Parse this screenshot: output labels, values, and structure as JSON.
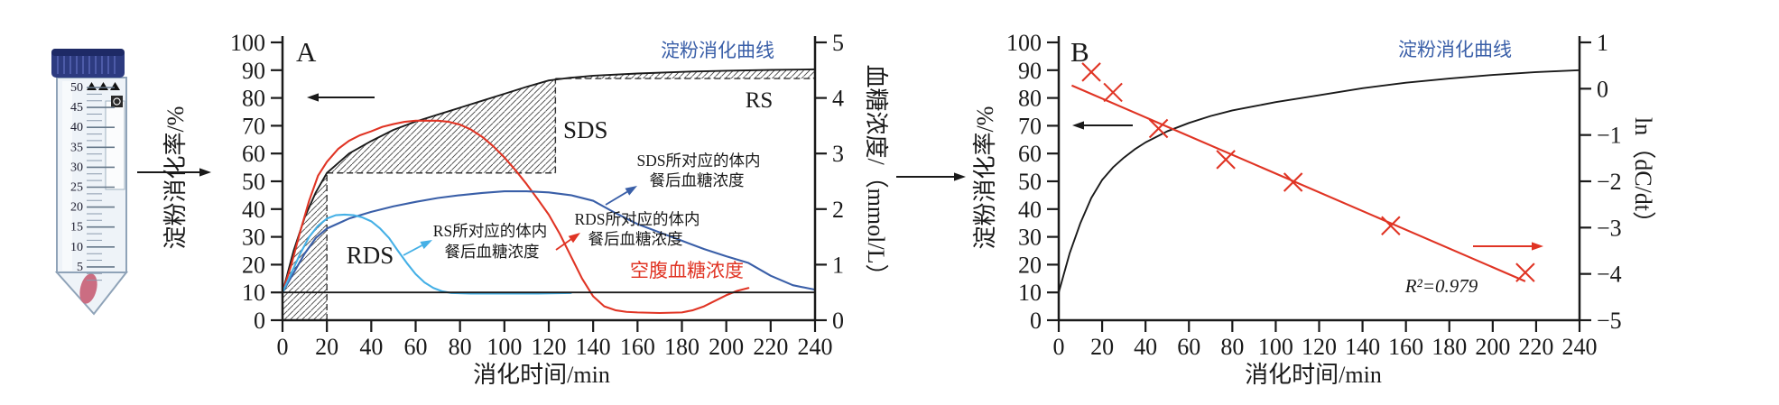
{
  "colors": {
    "black": "#1a1a1a",
    "red": "#e03424",
    "blue": "#3a5fa8",
    "light_blue": "#45b0e6",
    "hatch": "#444444",
    "tube_cap": "#2d3b80",
    "tube_body": "#eef3f8",
    "pellet": "#cb6d82"
  },
  "tube": {
    "graduations": [
      "50",
      "45",
      "40",
      "35",
      "30",
      "25",
      "20",
      "15",
      "10",
      "5"
    ]
  },
  "chart_data": [
    {
      "panel": "A",
      "type": "line",
      "xlabel": "消化时间/min",
      "ylabel_left": "淀粉消化率/%",
      "ylabel_right": "血糖浓度/（mmol/L）",
      "xlim": [
        0,
        240
      ],
      "xticks": [
        0,
        20,
        40,
        60,
        80,
        100,
        120,
        140,
        160,
        180,
        200,
        220,
        240
      ],
      "ylim_left": [
        0,
        100
      ],
      "yticks_left": [
        0,
        10,
        20,
        30,
        40,
        50,
        60,
        70,
        80,
        90,
        100
      ],
      "ylim_right": [
        0,
        5
      ],
      "yticks_right": [
        0,
        1,
        2,
        3,
        4,
        5
      ],
      "labels": {
        "curve": "淀粉消化曲线",
        "rds": "RDS",
        "sds": "SDS",
        "rs": "RS",
        "fasting": "空腹血糖浓度",
        "rs_ann": [
          "RS所对应的体内",
          "餐后血糖浓度"
        ],
        "sds_ann": [
          "SDS所对应的体内",
          "餐后血糖浓度"
        ],
        "rds_ann": [
          "RDS所对应的体内",
          "餐后血糖浓度"
        ]
      },
      "guides": {
        "rds_t": 20,
        "sds_t": 123,
        "sds_level": 53,
        "rs_level": 87,
        "baseline_mmol": 0.5
      },
      "series": [
        {
          "name": "starch-digestion-curve",
          "color": "black",
          "axis": "left",
          "points": [
            [
              0,
              10
            ],
            [
              5,
              25
            ],
            [
              10,
              37
            ],
            [
              15,
              46
            ],
            [
              20,
              53
            ],
            [
              30,
              60
            ],
            [
              40,
              64.5
            ],
            [
              50,
              68.5
            ],
            [
              60,
              71.5
            ],
            [
              70,
              74
            ],
            [
              80,
              76.5
            ],
            [
              90,
              79
            ],
            [
              100,
              81.5
            ],
            [
              110,
              84
            ],
            [
              120,
              86.3
            ],
            [
              130,
              87.3
            ],
            [
              140,
              88
            ],
            [
              160,
              88.8
            ],
            [
              180,
              89.4
            ],
            [
              200,
              89.8
            ],
            [
              220,
              90.1
            ],
            [
              240,
              90.3
            ]
          ]
        },
        {
          "name": "rds-postprandial-glucose",
          "color": "red",
          "axis": "right",
          "points": [
            [
              0,
              0.5
            ],
            [
              4,
              1.0
            ],
            [
              8,
              1.6
            ],
            [
              12,
              2.15
            ],
            [
              16,
              2.6
            ],
            [
              20,
              2.85
            ],
            [
              25,
              3.08
            ],
            [
              30,
              3.23
            ],
            [
              35,
              3.33
            ],
            [
              40,
              3.4
            ],
            [
              45,
              3.48
            ],
            [
              50,
              3.53
            ],
            [
              55,
              3.57
            ],
            [
              60,
              3.59
            ],
            [
              65,
              3.59
            ],
            [
              70,
              3.59
            ],
            [
              75,
              3.57
            ],
            [
              80,
              3.52
            ],
            [
              85,
              3.43
            ],
            [
              90,
              3.3
            ],
            [
              95,
              3.13
            ],
            [
              100,
              2.93
            ],
            [
              105,
              2.7
            ],
            [
              110,
              2.45
            ],
            [
              115,
              2.18
            ],
            [
              120,
              1.9
            ],
            [
              125,
              1.55
            ],
            [
              130,
              1.15
            ],
            [
              135,
              0.75
            ],
            [
              140,
              0.43
            ],
            [
              145,
              0.25
            ],
            [
              150,
              0.18
            ],
            [
              155,
              0.15
            ],
            [
              160,
              0.14
            ],
            [
              170,
              0.13
            ],
            [
              180,
              0.14
            ],
            [
              185,
              0.18
            ],
            [
              190,
              0.25
            ],
            [
              195,
              0.35
            ],
            [
              200,
              0.45
            ],
            [
              205,
              0.53
            ],
            [
              210,
              0.58
            ]
          ]
        },
        {
          "name": "sds-postprandial-glucose",
          "color": "blue",
          "axis": "right",
          "points": [
            [
              0,
              0.5
            ],
            [
              5,
              0.85
            ],
            [
              10,
              1.2
            ],
            [
              15,
              1.48
            ],
            [
              20,
              1.65
            ],
            [
              30,
              1.83
            ],
            [
              40,
              1.95
            ],
            [
              50,
              2.05
            ],
            [
              60,
              2.13
            ],
            [
              70,
              2.2
            ],
            [
              80,
              2.25
            ],
            [
              90,
              2.29
            ],
            [
              100,
              2.32
            ],
            [
              110,
              2.32
            ],
            [
              120,
              2.3
            ],
            [
              130,
              2.25
            ],
            [
              140,
              2.15
            ],
            [
              150,
              1.93
            ],
            [
              160,
              1.73
            ],
            [
              170,
              1.58
            ],
            [
              180,
              1.43
            ],
            [
              190,
              1.28
            ],
            [
              200,
              1.15
            ],
            [
              210,
              1.03
            ],
            [
              220,
              0.8
            ],
            [
              230,
              0.63
            ],
            [
              240,
              0.55
            ]
          ]
        },
        {
          "name": "rs-postprandial-glucose",
          "color": "light_blue",
          "axis": "right",
          "points": [
            [
              0,
              0.5
            ],
            [
              4,
              0.85
            ],
            [
              8,
              1.2
            ],
            [
              12,
              1.5
            ],
            [
              16,
              1.7
            ],
            [
              20,
              1.83
            ],
            [
              24,
              1.89
            ],
            [
              28,
              1.9
            ],
            [
              32,
              1.89
            ],
            [
              36,
              1.85
            ],
            [
              40,
              1.78
            ],
            [
              44,
              1.65
            ],
            [
              48,
              1.48
            ],
            [
              52,
              1.25
            ],
            [
              56,
              1.03
            ],
            [
              60,
              0.83
            ],
            [
              64,
              0.68
            ],
            [
              68,
              0.58
            ],
            [
              72,
              0.52
            ],
            [
              76,
              0.49
            ],
            [
              85,
              0.48
            ],
            [
              100,
              0.48
            ],
            [
              115,
              0.48
            ],
            [
              130,
              0.49
            ]
          ]
        },
        {
          "name": "fasting-glucose-baseline",
          "color": "black",
          "axis": "right",
          "points": [
            [
              0,
              0.5
            ],
            [
              240,
              0.5
            ]
          ]
        }
      ]
    },
    {
      "panel": "B",
      "type": "line+scatter",
      "xlabel": "消化时间/min",
      "ylabel_left": "淀粉消化率/%",
      "ylabel_right": "ln（dC/dt）",
      "xlim": [
        0,
        240
      ],
      "xticks": [
        0,
        20,
        40,
        60,
        80,
        100,
        120,
        140,
        160,
        180,
        200,
        220,
        240
      ],
      "ylim_left": [
        0,
        100
      ],
      "yticks_left": [
        0,
        10,
        20,
        30,
        40,
        50,
        60,
        70,
        80,
        90,
        100
      ],
      "ylim_right": [
        -5,
        1
      ],
      "yticks_right": [
        1,
        0,
        -1,
        -2,
        -3,
        -4,
        -5
      ],
      "labels": {
        "curve": "淀粉消化曲线",
        "r_squared": "R²=0.979"
      },
      "series": [
        {
          "name": "starch-digestion-curve",
          "color": "black",
          "axis": "left",
          "points": [
            [
              0,
              10
            ],
            [
              5,
              24
            ],
            [
              10,
              35
            ],
            [
              15,
              44
            ],
            [
              20,
              50.5
            ],
            [
              25,
              55
            ],
            [
              30,
              58.5
            ],
            [
              35,
              61.5
            ],
            [
              40,
              64
            ],
            [
              45,
              66
            ],
            [
              50,
              68
            ],
            [
              60,
              71
            ],
            [
              70,
              73.5
            ],
            [
              80,
              75.5
            ],
            [
              90,
              77
            ],
            [
              100,
              78.5
            ],
            [
              120,
              81
            ],
            [
              140,
              83.5
            ],
            [
              160,
              85.5
            ],
            [
              180,
              87
            ],
            [
              200,
              88.3
            ],
            [
              220,
              89.3
            ],
            [
              240,
              90
            ]
          ]
        }
      ],
      "scatter": {
        "name": "ln-dcdt-points",
        "color": "red",
        "marker": "x",
        "points": [
          [
            15,
            0.36
          ],
          [
            25,
            -0.08
          ],
          [
            46,
            -0.86
          ],
          [
            77,
            -1.53
          ],
          [
            108,
            -2.02
          ],
          [
            153,
            -2.96
          ],
          [
            215,
            -3.97
          ]
        ]
      },
      "fit": {
        "name": "linear-fit",
        "color": "red",
        "x": [
          6,
          215
        ],
        "y": [
          0.07,
          -4.16
        ]
      }
    }
  ]
}
